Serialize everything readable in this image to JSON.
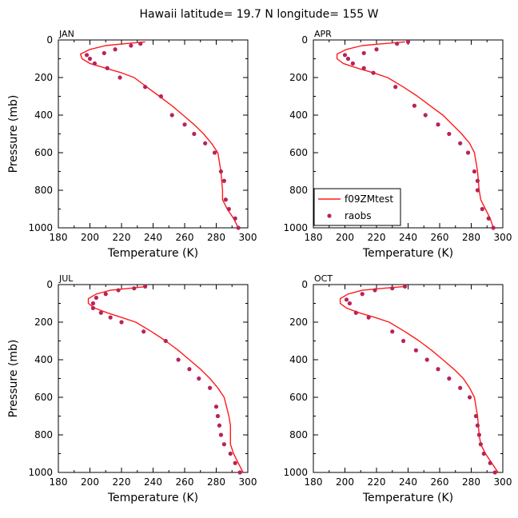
{
  "figure": {
    "title": "Hawaii   latitude= 19.7 N longitude= 155 W"
  },
  "colors": {
    "model_line": "#ff1a1a",
    "obs_points": "#b8235a",
    "axes": "#000000"
  },
  "legend": {
    "placement": "lower-left of APR panel",
    "entries": [
      {
        "label": "f09ZMtest",
        "marker": "line",
        "color": "#ff1a1a"
      },
      {
        "label": "raobs",
        "marker": "dot",
        "color": "#b8235a"
      }
    ]
  },
  "chart_data": [
    {
      "type": "line",
      "title": "JAN",
      "xlabel": "Temperature (K)",
      "ylabel": "Pressure (mb)",
      "xlim": [
        180,
        300
      ],
      "ylim": [
        1000,
        0
      ],
      "y_inverted": true,
      "xticks": [
        180,
        200,
        220,
        240,
        260,
        280,
        300
      ],
      "yticks": [
        0,
        200,
        400,
        600,
        800,
        1000
      ],
      "series": [
        {
          "name": "f09ZMtest",
          "kind": "line",
          "x": [
            235,
            222,
            210,
            200,
            194,
            195,
            200,
            210,
            220,
            228,
            236,
            244,
            252,
            259,
            266,
            272,
            277,
            281,
            283,
            284,
            284,
            287,
            291,
            294
          ],
          "y": [
            10,
            20,
            30,
            50,
            75,
            100,
            125,
            150,
            175,
            200,
            250,
            300,
            350,
            400,
            450,
            500,
            550,
            600,
            700,
            800,
            850,
            900,
            950,
            1000
          ]
        },
        {
          "name": "raobs",
          "kind": "scatter",
          "x": [
            232,
            226,
            216,
            209,
            200,
            198,
            203,
            211,
            219,
            235,
            245,
            252,
            260,
            266,
            273,
            279,
            283,
            285,
            286,
            288,
            292,
            294
          ],
          "y": [
            20,
            30,
            50,
            70,
            100,
            80,
            125,
            150,
            200,
            250,
            300,
            400,
            450,
            500,
            550,
            600,
            700,
            750,
            850,
            900,
            950,
            1000
          ]
        }
      ]
    },
    {
      "type": "line",
      "title": "APR",
      "xlabel": "Temperature (K)",
      "ylabel": "",
      "xlim": [
        180,
        300
      ],
      "ylim": [
        1000,
        0
      ],
      "y_inverted": true,
      "xticks": [
        180,
        200,
        220,
        240,
        260,
        280,
        300
      ],
      "yticks": [
        0,
        200,
        400,
        600,
        800,
        1000
      ],
      "series": [
        {
          "name": "f09ZMtest",
          "kind": "line",
          "x": [
            238,
            224,
            211,
            201,
            195,
            195,
            199,
            208,
            218,
            227,
            237,
            246,
            254,
            262,
            268,
            274,
            279,
            282,
            284,
            285,
            286,
            289,
            292,
            294
          ],
          "y": [
            10,
            20,
            30,
            50,
            75,
            100,
            125,
            150,
            175,
            200,
            250,
            300,
            350,
            400,
            450,
            500,
            550,
            600,
            700,
            800,
            850,
            900,
            950,
            1000
          ]
        },
        {
          "name": "raobs",
          "kind": "scatter",
          "x": [
            240,
            233,
            220,
            212,
            202,
            200,
            205,
            212,
            218,
            232,
            244,
            251,
            259,
            266,
            273,
            278,
            282,
            284,
            284,
            287,
            291,
            294
          ],
          "y": [
            10,
            20,
            50,
            70,
            100,
            80,
            125,
            150,
            175,
            250,
            350,
            400,
            450,
            500,
            550,
            600,
            700,
            750,
            800,
            900,
            950,
            1000
          ]
        }
      ]
    },
    {
      "type": "line",
      "title": "JUL",
      "xlabel": "Temperature (K)",
      "ylabel": "Pressure (mb)",
      "xlim": [
        180,
        300
      ],
      "ylim": [
        1000,
        0
      ],
      "y_inverted": true,
      "xticks": [
        180,
        200,
        220,
        240,
        260,
        280,
        300
      ],
      "yticks": [
        0,
        200,
        400,
        600,
        800,
        1000
      ],
      "series": [
        {
          "name": "f09ZMtest",
          "kind": "line",
          "x": [
            236,
            225,
            213,
            204,
            199,
            199,
            203,
            211,
            220,
            229,
            239,
            248,
            256,
            263,
            270,
            276,
            281,
            285,
            288,
            289,
            289,
            291,
            294,
            297
          ],
          "y": [
            10,
            20,
            30,
            50,
            75,
            100,
            125,
            150,
            175,
            200,
            250,
            300,
            350,
            400,
            450,
            500,
            550,
            600,
            700,
            750,
            850,
            900,
            950,
            1000
          ]
        },
        {
          "name": "raobs",
          "kind": "scatter",
          "x": [
            235,
            228,
            218,
            210,
            204,
            202,
            202,
            207,
            213,
            220,
            234,
            248,
            256,
            263,
            269,
            276,
            280,
            281,
            282,
            283,
            285,
            289,
            292,
            295
          ],
          "y": [
            10,
            20,
            30,
            50,
            70,
            100,
            125,
            150,
            175,
            200,
            250,
            300,
            400,
            450,
            500,
            550,
            650,
            700,
            750,
            800,
            850,
            900,
            950,
            1000
          ]
        }
      ]
    },
    {
      "type": "line",
      "title": "OCT",
      "xlabel": "Temperature (K)",
      "ylabel": "",
      "xlim": [
        180,
        300
      ],
      "ylim": [
        1000,
        0
      ],
      "y_inverted": true,
      "xticks": [
        180,
        200,
        220,
        240,
        260,
        280,
        300
      ],
      "yticks": [
        0,
        200,
        400,
        600,
        800,
        1000
      ],
      "series": [
        {
          "name": "f09ZMtest",
          "kind": "line",
          "x": [
            238,
            224,
            211,
            202,
            197,
            197,
            201,
            209,
            219,
            228,
            238,
            247,
            255,
            262,
            269,
            275,
            279,
            282,
            284,
            285,
            286,
            289,
            293,
            297
          ],
          "y": [
            10,
            20,
            30,
            50,
            75,
            100,
            125,
            150,
            175,
            200,
            250,
            300,
            350,
            400,
            450,
            500,
            550,
            600,
            700,
            800,
            850,
            900,
            950,
            1000
          ]
        },
        {
          "name": "raobs",
          "kind": "scatter",
          "x": [
            238,
            230,
            219,
            211,
            203,
            201,
            207,
            215,
            230,
            237,
            245,
            252,
            259,
            266,
            273,
            279,
            283,
            284,
            285,
            286,
            288,
            292,
            295
          ],
          "y": [
            10,
            20,
            30,
            50,
            100,
            80,
            150,
            175,
            250,
            300,
            350,
            400,
            450,
            500,
            550,
            600,
            700,
            750,
            800,
            850,
            900,
            950,
            1000
          ]
        }
      ]
    }
  ]
}
